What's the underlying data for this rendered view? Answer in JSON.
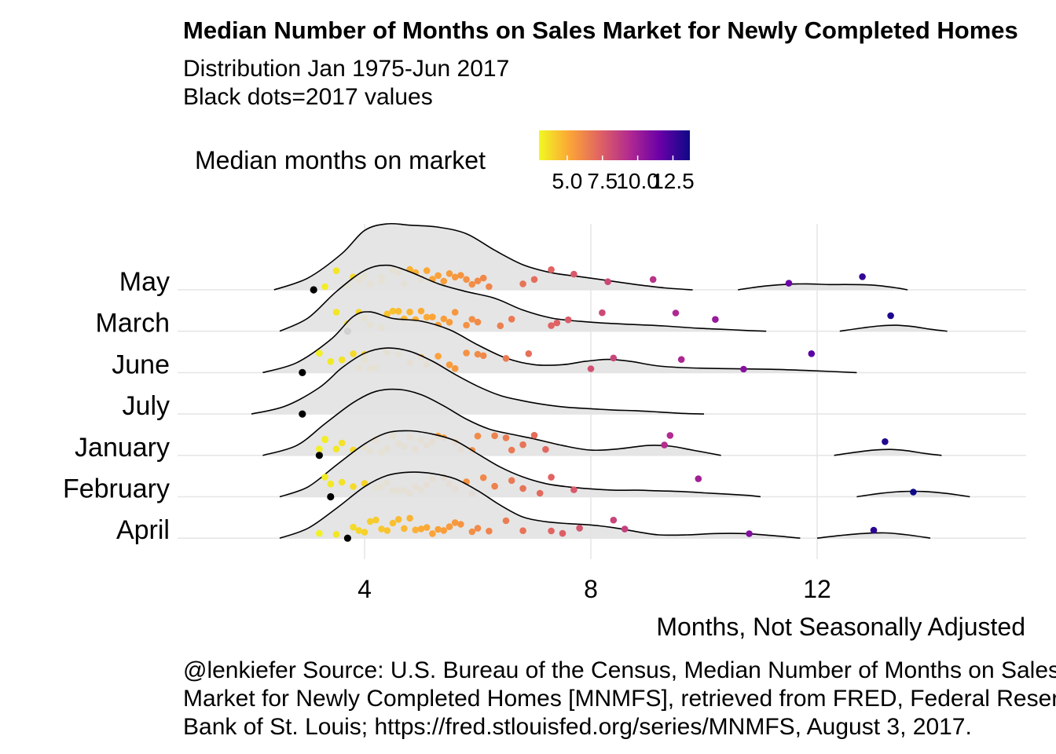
{
  "chart_data": {
    "type": "ridgeline",
    "title": "Median Number of Months on Sales Market for Newly Completed Homes",
    "subtitle_lines": [
      "Distribution Jan 1975-Jun 2017",
      "Black dots=2017 values"
    ],
    "xlabel": "Months, Not Seasonally Adjusted",
    "ylabel": "",
    "xlim": [
      1.2,
      16
    ],
    "x_ticks": [
      4,
      8,
      12
    ],
    "x_tick_labels": [
      "4",
      "8",
      "12"
    ],
    "grid": true,
    "legend": {
      "title": "Median months on market",
      "placement": "top",
      "palette": "plasma",
      "range": [
        3,
        13.7
      ],
      "tick_values": [
        5,
        7.5,
        10,
        12.5
      ],
      "tick_labels": [
        "5.0",
        "7.5",
        "10.0",
        "12.5"
      ],
      "colors": [
        "#f0f921",
        "#fca636",
        "#e16462",
        "#b12a90",
        "#6a00a8",
        "#0d0887"
      ]
    },
    "caption_lines": [
      "@lenkiefer Source: U.S. Bureau of the Census, Median Number of Months on Sales",
      "Market for Newly Completed Homes [MNMFS], retrieved from FRED, Federal Reserve",
      "Bank of St. Louis; https://fred.stlouisfed.org/series/MNMFS, August 3, 2017."
    ],
    "highlight_color": "#000000",
    "series": [
      {
        "name": "May",
        "density_x": [
          2.4,
          3.0,
          3.6,
          4.0,
          4.4,
          4.8,
          5.3,
          5.8,
          6.3,
          6.8,
          7.3,
          7.8,
          8.3,
          8.8,
          9.3,
          9.8
        ],
        "density_y": [
          0,
          0.18,
          0.55,
          0.9,
          1.0,
          0.98,
          0.95,
          0.85,
          0.6,
          0.38,
          0.26,
          0.2,
          0.14,
          0.08,
          0.03,
          0
        ],
        "density2_x": [
          10.6,
          11.0,
          11.4,
          11.8,
          12.2,
          12.6,
          13.0,
          13.4,
          13.6
        ],
        "density2_y": [
          0,
          0.05,
          0.08,
          0.09,
          0.08,
          0.08,
          0.07,
          0.03,
          0
        ],
        "values": [
          3.3,
          3.5,
          3.7,
          3.8,
          3.9,
          3.9,
          4.0,
          4.1,
          4.3,
          4.3,
          4.5,
          4.6,
          4.7,
          4.8,
          4.9,
          5.0,
          5.1,
          5.2,
          5.3,
          5.4,
          5.5,
          5.6,
          5.7,
          5.8,
          5.9,
          6.0,
          6.1,
          6.2,
          6.8,
          7.0,
          7.3,
          7.7,
          8.3,
          9.1,
          11.5,
          12.8
        ],
        "current_2017": [
          3.1
        ]
      },
      {
        "name": "March",
        "density_x": [
          2.5,
          3.0,
          3.5,
          4.0,
          4.4,
          4.8,
          5.3,
          5.8,
          6.3,
          6.8,
          7.3,
          7.8,
          8.3,
          8.8,
          9.3,
          9.8,
          10.3,
          10.8,
          11.1
        ],
        "density2_x": [
          12.4,
          12.8,
          13.1,
          13.4,
          13.7,
          14.0,
          14.3
        ],
        "values": [
          3.5,
          3.7,
          3.9,
          4.0,
          4.1,
          4.3,
          4.4,
          4.5,
          4.6,
          4.7,
          4.8,
          4.9,
          5.0,
          5.1,
          5.2,
          5.3,
          5.4,
          5.5,
          5.6,
          5.8,
          5.9,
          6.0,
          6.4,
          6.6,
          7.3,
          7.4,
          7.6,
          8.2,
          9.5,
          10.2,
          13.3
        ],
        "current_2017": [
          3.7
        ],
        "density_y": [
          0,
          0.2,
          0.6,
          0.92,
          1.0,
          0.9,
          0.72,
          0.6,
          0.5,
          0.32,
          0.2,
          0.15,
          0.12,
          0.1,
          0.08,
          0.05,
          0.03,
          0.01,
          0
        ],
        "density2_y": [
          0,
          0.05,
          0.08,
          0.09,
          0.07,
          0.03,
          0
        ]
      },
      {
        "name": "June",
        "density_x": [
          2.2,
          2.8,
          3.4,
          3.8,
          4.1,
          4.5,
          5.0,
          5.5,
          6.0,
          6.5,
          7.0,
          7.5,
          7.9,
          8.3,
          8.7,
          9.2,
          9.8,
          10.5,
          11.2,
          11.9,
          12.7
        ],
        "density_y": [
          0,
          0.15,
          0.5,
          0.85,
          0.92,
          0.82,
          0.78,
          0.65,
          0.42,
          0.22,
          0.12,
          0.12,
          0.17,
          0.2,
          0.17,
          0.1,
          0.07,
          0.06,
          0.05,
          0.03,
          0
        ],
        "values": [
          3.2,
          3.4,
          3.6,
          3.8,
          3.9,
          4.0,
          4.0,
          4.1,
          4.2,
          4.4,
          4.6,
          4.8,
          5.0,
          5.1,
          5.3,
          5.5,
          5.6,
          5.8,
          6.0,
          6.1,
          6.5,
          6.9,
          8.0,
          8.4,
          9.6,
          10.7,
          11.9
        ],
        "current_2017": [
          2.9
        ]
      },
      {
        "name": "July",
        "density_x": [
          2.0,
          2.6,
          3.2,
          3.6,
          4.0,
          4.4,
          4.8,
          5.2,
          5.6,
          6.0,
          6.4,
          6.8,
          7.2,
          7.6,
          8.0,
          8.4,
          8.8,
          9.2,
          9.6,
          10.0
        ],
        "density_y": [
          0,
          0.12,
          0.4,
          0.7,
          0.92,
          1.0,
          0.95,
          0.8,
          0.6,
          0.42,
          0.28,
          0.2,
          0.14,
          0.1,
          0.08,
          0.06,
          0.05,
          0.03,
          0.01,
          0
        ],
        "values": [],
        "current_2017": [
          2.9
        ]
      },
      {
        "name": "January",
        "density_x": [
          2.2,
          2.8,
          3.3,
          3.8,
          4.2,
          4.6,
          5.0,
          5.4,
          5.8,
          6.2,
          6.6,
          7.0,
          7.5,
          8.0,
          8.5,
          9.0,
          9.4,
          9.8,
          10.3
        ],
        "density_y": [
          0,
          0.15,
          0.48,
          0.8,
          0.97,
          1.0,
          0.92,
          0.75,
          0.55,
          0.4,
          0.32,
          0.25,
          0.15,
          0.08,
          0.1,
          0.15,
          0.14,
          0.08,
          0
        ],
        "density2_x": [
          12.3,
          12.7,
          13.0,
          13.3,
          13.6,
          13.9,
          14.2
        ],
        "density2_y": [
          0,
          0.05,
          0.08,
          0.09,
          0.07,
          0.03,
          0
        ],
        "values": [
          3.2,
          3.3,
          3.3,
          3.5,
          3.6,
          3.8,
          4.0,
          4.1,
          4.2,
          4.3,
          4.4,
          4.5,
          4.6,
          4.7,
          4.8,
          4.9,
          5.0,
          5.1,
          5.2,
          5.3,
          5.4,
          5.6,
          5.7,
          5.9,
          6.0,
          6.3,
          6.5,
          6.6,
          6.8,
          7.0,
          7.2,
          9.3,
          9.4,
          13.2
        ],
        "current_2017": [
          3.2
        ]
      },
      {
        "name": "February",
        "density_x": [
          2.5,
          3.0,
          3.5,
          4.0,
          4.4,
          4.8,
          5.2,
          5.6,
          6.0,
          6.4,
          6.8,
          7.2,
          7.6,
          8.0,
          8.4,
          8.8,
          9.2,
          9.6,
          10.0,
          10.4,
          10.8,
          11.0
        ],
        "density_y": [
          0,
          0.15,
          0.48,
          0.8,
          0.97,
          1.0,
          0.95,
          0.85,
          0.65,
          0.45,
          0.3,
          0.2,
          0.15,
          0.12,
          0.1,
          0.1,
          0.09,
          0.08,
          0.06,
          0.04,
          0.02,
          0
        ],
        "density2_x": [
          12.7,
          13.1,
          13.5,
          13.9,
          14.3,
          14.7
        ],
        "density2_y": [
          0,
          0.05,
          0.08,
          0.08,
          0.05,
          0
        ],
        "values": [
          3.3,
          3.4,
          3.4,
          3.6,
          3.8,
          4.0,
          4.2,
          4.3,
          4.4,
          4.5,
          4.6,
          4.7,
          4.8,
          4.9,
          5.0,
          5.1,
          5.2,
          5.4,
          5.5,
          5.6,
          5.8,
          5.9,
          6.1,
          6.3,
          6.6,
          6.8,
          7.1,
          7.3,
          7.7,
          9.9,
          13.7
        ],
        "current_2017": [
          3.4
        ]
      },
      {
        "name": "April",
        "density_x": [
          2.5,
          3.0,
          3.5,
          4.0,
          4.4,
          4.8,
          5.2,
          5.6,
          6.0,
          6.4,
          6.8,
          7.2,
          7.6,
          8.0,
          8.4,
          8.8,
          9.2,
          9.7,
          10.2,
          10.7,
          11.2,
          11.7
        ],
        "density_y": [
          0,
          0.15,
          0.45,
          0.78,
          0.95,
          1.0,
          0.98,
          0.9,
          0.72,
          0.5,
          0.32,
          0.25,
          0.22,
          0.2,
          0.16,
          0.1,
          0.05,
          0.05,
          0.07,
          0.07,
          0.04,
          0
        ],
        "density2_x": [
          12.0,
          12.4,
          12.8,
          13.2,
          13.6,
          14.0
        ],
        "density2_y": [
          0,
          0.04,
          0.07,
          0.08,
          0.05,
          0
        ],
        "values": [
          3.2,
          3.5,
          3.8,
          3.9,
          4.0,
          4.1,
          4.2,
          4.3,
          4.4,
          4.5,
          4.6,
          4.7,
          4.8,
          4.9,
          5.0,
          5.1,
          5.2,
          5.3,
          5.4,
          5.5,
          5.6,
          5.7,
          5.9,
          6.0,
          6.2,
          6.5,
          6.8,
          7.3,
          7.5,
          7.8,
          8.4,
          8.6,
          10.8,
          13.0
        ],
        "current_2017": [
          3.7
        ]
      }
    ]
  }
}
